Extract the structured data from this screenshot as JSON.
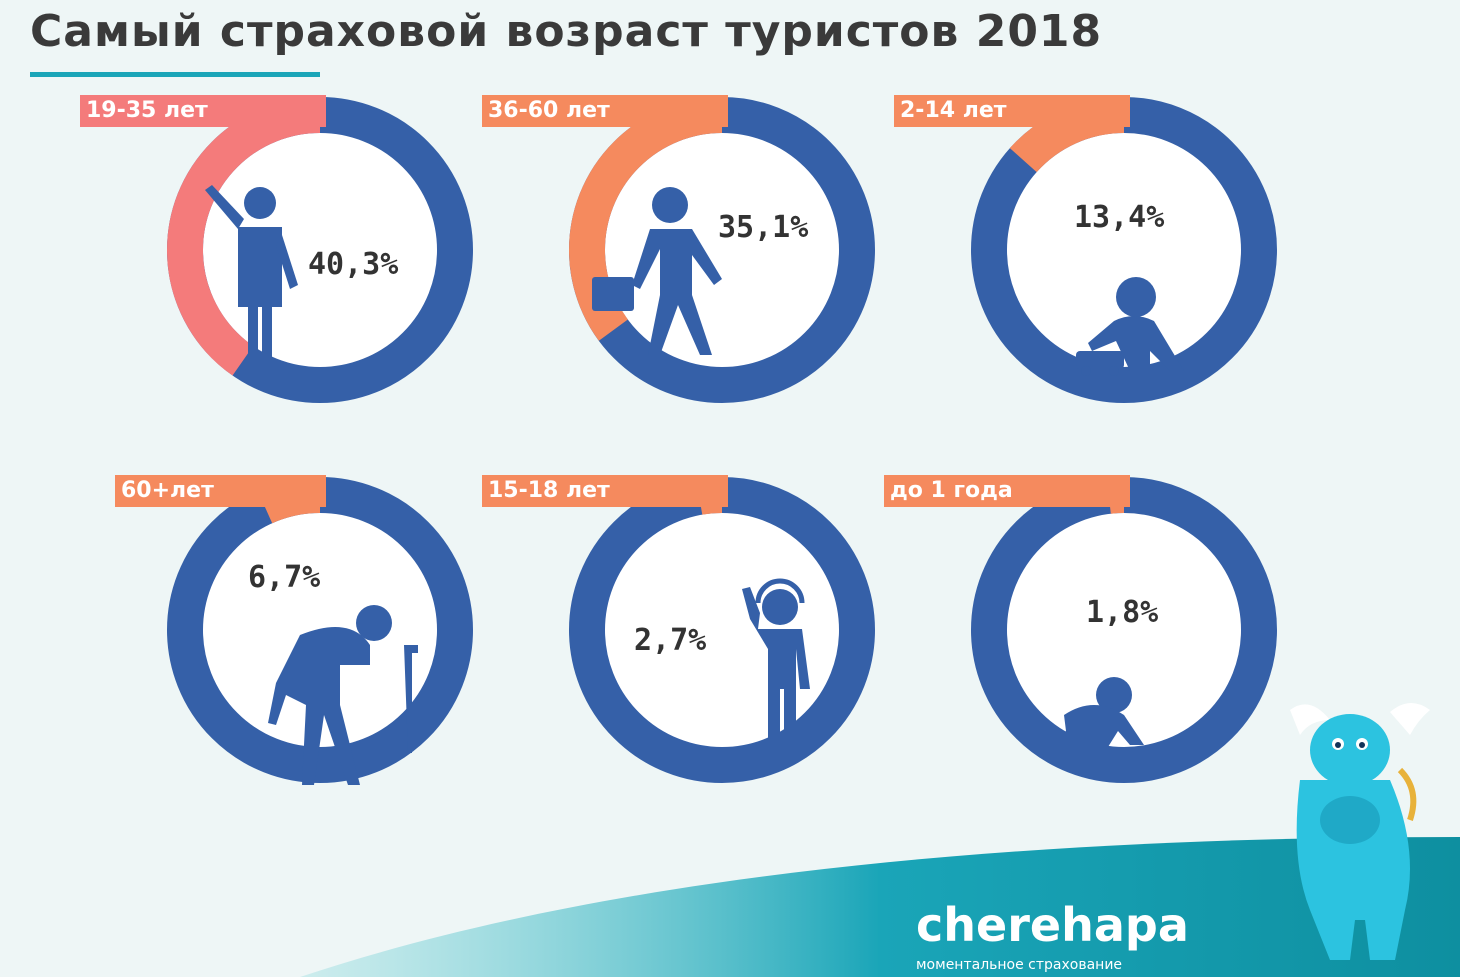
{
  "title": "Самый страховой возраст туристов 2018",
  "brand": {
    "name": "cherehapa",
    "tagline": "моментальное страхование"
  },
  "colors": {
    "remainder": "#3560a8",
    "accent": "#1aa5b8"
  },
  "chart_data": [
    {
      "type": "pie",
      "category": "19-35 лет",
      "value": 40.3,
      "value_label": "40,3%",
      "color": "#f47b7b",
      "figure": "person-waving-icon"
    },
    {
      "type": "pie",
      "category": "36-60 лет",
      "value": 35.1,
      "value_label": "35,1%",
      "color": "#f58a5e",
      "figure": "businessman-icon"
    },
    {
      "type": "pie",
      "category": "2-14 лет",
      "value": 13.4,
      "value_label": "13,4%",
      "color": "#f58a5e",
      "figure": "child-with-toy-bus-icon"
    },
    {
      "type": "pie",
      "category": "60+лет",
      "value": 6.7,
      "value_label": "6,7%",
      "color": "#f58a5e",
      "figure": "elderly-with-cane-icon"
    },
    {
      "type": "pie",
      "category": "15-18 лет",
      "value": 2.7,
      "value_label": "2,7%",
      "color": "#f58a5e",
      "figure": "teen-with-headphones-icon"
    },
    {
      "type": "pie",
      "category": "до 1 года",
      "value": 1.8,
      "value_label": "1,8%",
      "color": "#f58a5e",
      "figure": "crawling-baby-icon"
    }
  ]
}
